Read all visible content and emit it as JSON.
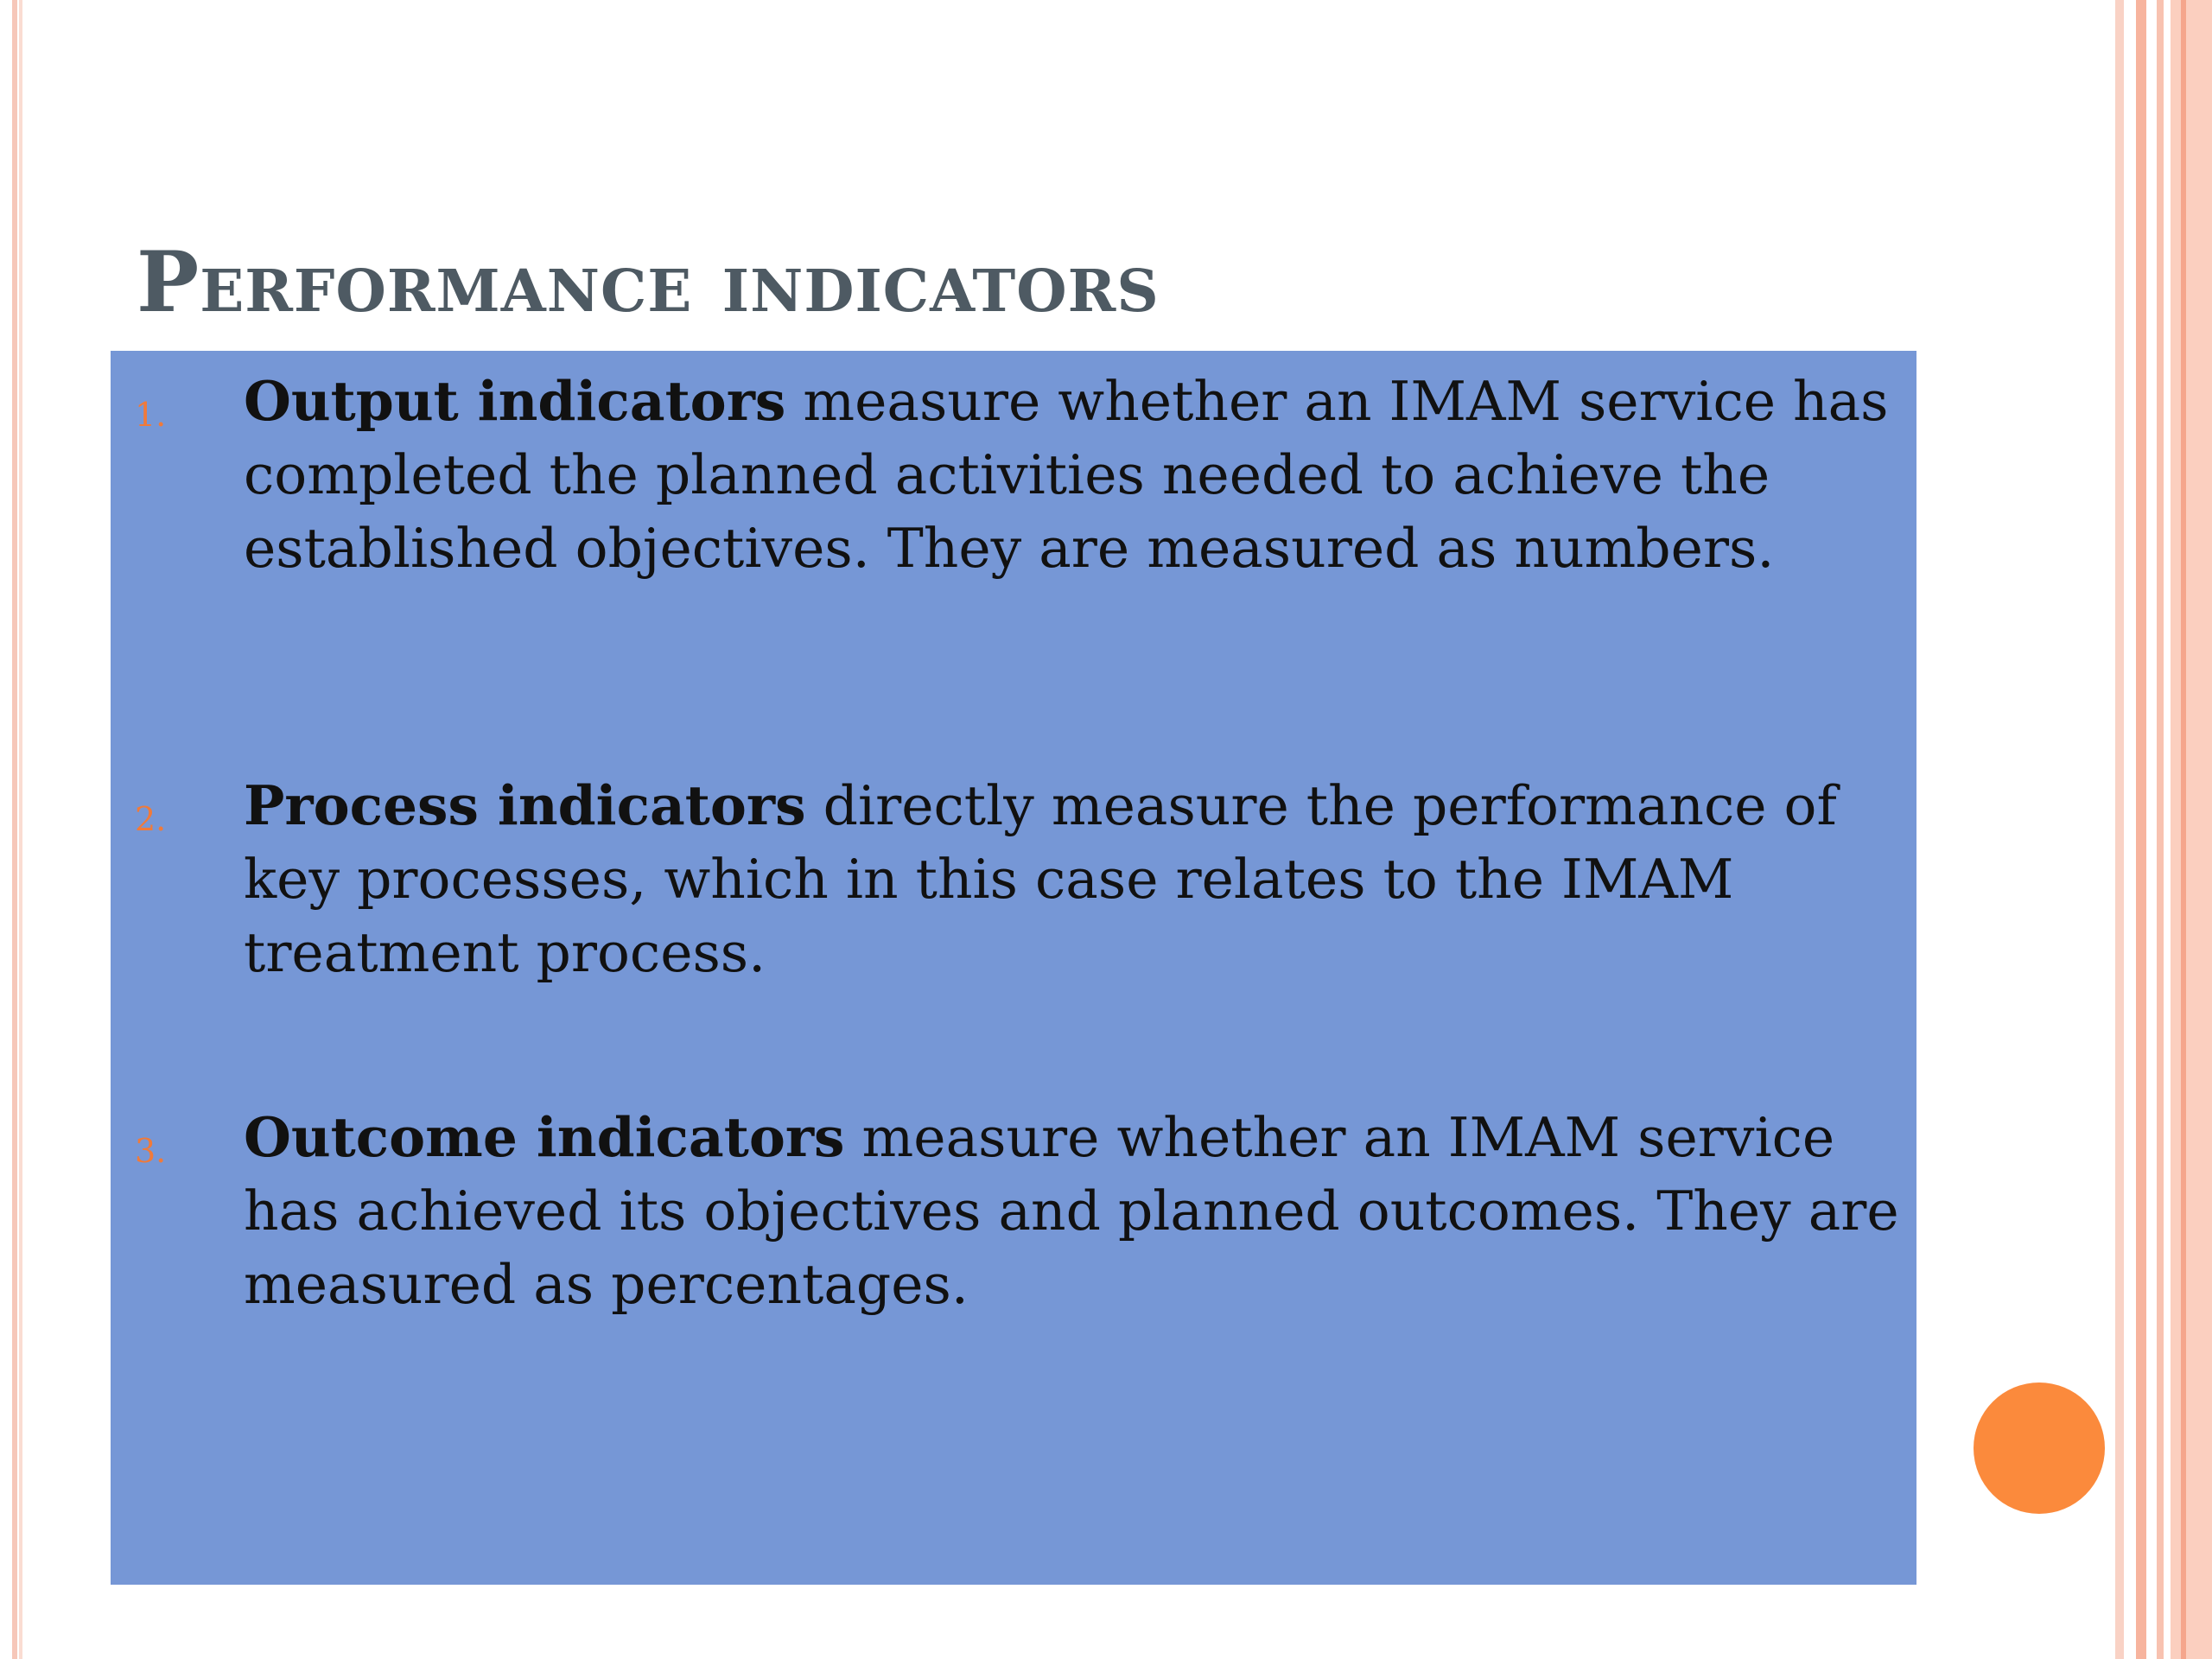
{
  "slide": {
    "title": "Performance indicators",
    "colors": {
      "background": "#ffffff",
      "content_box": "#7697d6",
      "title": "#4e5a63",
      "number_accent": "#f07a3a",
      "dot": "#fb8a3c",
      "border_stripes": "#f7b49e"
    },
    "items": [
      {
        "number": "1.",
        "term": "Output indicators",
        "text": " measure whether an IMAM service has completed the planned activities needed to achieve the established objectives. They are measured as numbers."
      },
      {
        "number": "2.",
        "term": "Process indicators",
        "text": " directly measure the performance of key processes, which in this case relates to the IMAM treatment process."
      },
      {
        "number": "3.",
        "term": "Outcome indicators",
        "text": " measure whether an IMAM service has achieved its objectives and planned outcomes. They are measured as percentages."
      }
    ]
  }
}
